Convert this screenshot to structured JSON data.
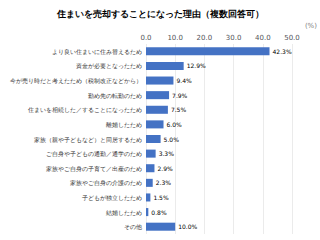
{
  "chart_data": {
    "type": "bar",
    "orientation": "horizontal",
    "title": "住まいを売却することになった理由（複数回答可）",
    "annotation": "(%)",
    "categories": [
      "その他",
      "結婚したため",
      "子どもが独立したため",
      "家族やご自身の介護のため",
      "家族やご自身の子育て／出産のため",
      "ご自身や子どもの通勤／通学のため",
      "家族（親や子どもなど）と同居するため",
      "離婚したため",
      "住まいを相続した／することになったため",
      "勤め先の転勤のため",
      "今が売り時だと考えたため（税制改正などから）",
      "資金が必要となったため",
      "より良い住まいに住み替えるため"
    ],
    "values": [
      10.0,
      0.8,
      1.5,
      2.3,
      2.9,
      3.3,
      5.0,
      6.0,
      7.5,
      7.9,
      9.4,
      12.9,
      42.3
    ],
    "value_labels": [
      "10.0%",
      "0.8%",
      "1.5%",
      "2.3%",
      "2.9%",
      "3.3%",
      "5.0%",
      "6.0%",
      "7.5%",
      "7.9%",
      "9.4%",
      "12.9%",
      "42.3%"
    ],
    "data_labels": true,
    "color": "#4472c4",
    "xlim": [
      0,
      50
    ],
    "xticks": [
      {
        "value": 0,
        "label": "0.0"
      },
      {
        "value": 10,
        "label": "10.0"
      },
      {
        "value": 20,
        "label": "20.0"
      },
      {
        "value": 30,
        "label": "30.0"
      },
      {
        "value": 40,
        "label": "40.0"
      },
      {
        "value": 50,
        "label": "50.0"
      }
    ],
    "grid": true
  }
}
